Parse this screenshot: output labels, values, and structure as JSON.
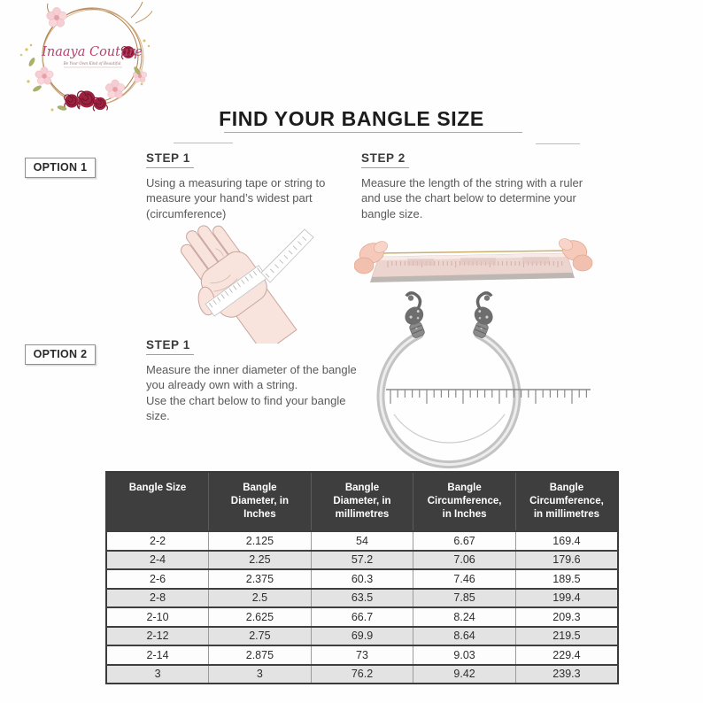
{
  "logo": {
    "brand": "Inaaya Couture",
    "tagline": "Be Your Own Kind of Beautiful"
  },
  "title": "FIND YOUR BANGLE SIZE",
  "option1": {
    "label": "OPTION 1",
    "step1": {
      "heading": "STEP 1",
      "text": "Using a measuring tape or string to measure your hand’s widest part (circumference)"
    },
    "step2": {
      "heading": "STEP 2",
      "text": "Measure the length of the string with a ruler and use the chart below to determine your bangle size."
    }
  },
  "option2": {
    "label": "OPTION 2",
    "step1": {
      "heading": "STEP 1",
      "text_line1": "Measure the inner diameter of the bangle you already own with a string.",
      "text_line2": "Use the chart below to find your bangle size."
    }
  },
  "table": {
    "headers": [
      {
        "lines": [
          "Bangle Size"
        ]
      },
      {
        "lines": [
          "Bangle",
          "Diameter, in",
          "Inches"
        ]
      },
      {
        "lines": [
          "Bangle",
          "Diameter, in",
          "millimetres"
        ]
      },
      {
        "lines": [
          "Bangle",
          "Circumference,",
          "in Inches"
        ]
      },
      {
        "lines": [
          "Bangle",
          "Circumference,",
          "in millimetres"
        ]
      }
    ],
    "rows": [
      [
        "2-2",
        "2.125",
        "54",
        "6.67",
        "169.4"
      ],
      [
        "2-4",
        "2.25",
        "57.2",
        "7.06",
        "179.6"
      ],
      [
        "2-6",
        "2.375",
        "60.3",
        "7.46",
        "189.5"
      ],
      [
        "2-8",
        "2.5",
        "63.5",
        "7.85",
        "199.4"
      ],
      [
        "2-10",
        "2.625",
        "66.7",
        "8.24",
        "209.3"
      ],
      [
        "2-12",
        "2.75",
        "69.9",
        "8.64",
        "219.5"
      ],
      [
        "2-14",
        "2.875",
        "73",
        "9.03",
        "229.4"
      ],
      [
        "3",
        "3",
        "76.2",
        "9.42",
        "239.3"
      ]
    ]
  },
  "colors": {
    "brand_text": "#b5446e",
    "table_header_bg": "#3f3e3e",
    "row_alt_bg": "#e3e3e3",
    "rose_red": "#9e2140",
    "skin": "#f8e3dd"
  }
}
